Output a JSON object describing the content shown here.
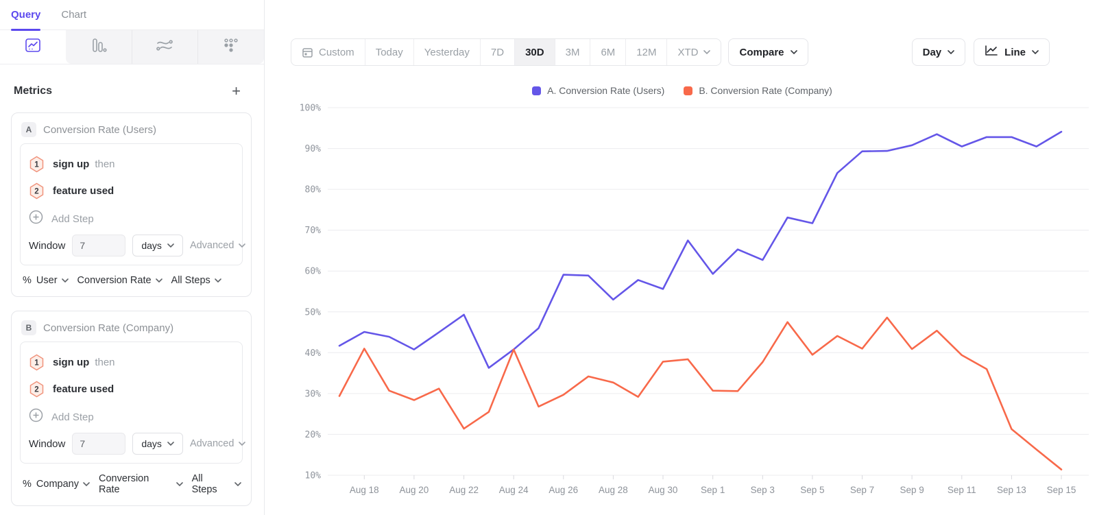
{
  "sidebar": {
    "tabs": [
      {
        "label": "Query",
        "active": true
      },
      {
        "label": "Chart",
        "active": false
      }
    ],
    "chart_type_icons": [
      {
        "name": "line-chart-icon",
        "active": true
      },
      {
        "name": "bar-chart-icon",
        "active": false
      },
      {
        "name": "flow-chart-icon",
        "active": false
      },
      {
        "name": "dots-grid-icon",
        "active": false
      }
    ],
    "metrics": {
      "title": "Metrics",
      "add_label": "+"
    },
    "metric_cards": [
      {
        "badge": "A",
        "title": "Conversion Rate (Users)",
        "steps": [
          {
            "num": "1",
            "event": "sign up",
            "suffix": "then"
          },
          {
            "num": "2",
            "event": "feature used",
            "suffix": ""
          }
        ],
        "add_step_label": "Add Step",
        "window": {
          "label": "Window",
          "value": "7",
          "unit": "days",
          "advanced_label": "Advanced"
        },
        "measure": {
          "prefix": "%",
          "entity": "User",
          "metric": "Conversion Rate",
          "steps": "All Steps"
        }
      },
      {
        "badge": "B",
        "title": "Conversion Rate (Company)",
        "steps": [
          {
            "num": "1",
            "event": "sign up",
            "suffix": "then"
          },
          {
            "num": "2",
            "event": "feature used",
            "suffix": ""
          }
        ],
        "add_step_label": "Add Step",
        "window": {
          "label": "Window",
          "value": "7",
          "unit": "days",
          "advanced_label": "Advanced"
        },
        "measure": {
          "prefix": "%",
          "entity": "Company",
          "metric": "Conversion Rate",
          "steps": "All Steps"
        }
      }
    ]
  },
  "toolbar": {
    "date_ranges": [
      {
        "label": "Custom",
        "icon": "calendar-icon"
      },
      {
        "label": "Today"
      },
      {
        "label": "Yesterday"
      },
      {
        "label": "7D"
      },
      {
        "label": "30D"
      },
      {
        "label": "3M"
      },
      {
        "label": "6M"
      },
      {
        "label": "12M"
      },
      {
        "label": "XTD",
        "dropdown": true
      }
    ],
    "active_range": "30D",
    "compare_label": "Compare",
    "granularity_label": "Day",
    "chart_style_label": "Line"
  },
  "chart_data": {
    "type": "line",
    "unit": "%",
    "ylim": [
      10,
      100
    ],
    "y_ticks": [
      100,
      90,
      80,
      70,
      60,
      50,
      40,
      30,
      20,
      10
    ],
    "grid": "horizontal",
    "legend_position": "top-center",
    "x_label_every": 2,
    "x_label_start": 1,
    "x": [
      "Aug 17",
      "Aug 18",
      "Aug 19",
      "Aug 20",
      "Aug 21",
      "Aug 22",
      "Aug 23",
      "Aug 24",
      "Aug 25",
      "Aug 26",
      "Aug 27",
      "Aug 28",
      "Aug 29",
      "Aug 30",
      "Aug 31",
      "Sep 1",
      "Sep 2",
      "Sep 3",
      "Sep 4",
      "Sep 5",
      "Sep 6",
      "Sep 7",
      "Sep 8",
      "Sep 9",
      "Sep 10",
      "Sep 11",
      "Sep 12",
      "Sep 13",
      "Sep 14",
      "Sep 15"
    ],
    "series": [
      {
        "key": "A",
        "name": "A. Conversion Rate (Users)",
        "color": "#6456E8",
        "values": [
          41.7,
          45.1,
          43.9,
          40.8,
          45.0,
          49.3,
          36.3,
          40.8,
          46.0,
          59.1,
          58.9,
          53.0,
          57.8,
          55.6,
          67.5,
          59.3,
          65.3,
          62.7,
          73.1,
          71.7,
          84.0,
          89.3,
          89.4,
          90.8,
          93.5,
          90.5,
          92.8,
          92.8,
          90.5,
          94.1
        ]
      },
      {
        "key": "B",
        "name": "B. Conversion Rate (Company)",
        "color": "#F8694A",
        "values": [
          29.4,
          41.0,
          30.7,
          28.4,
          31.2,
          21.4,
          25.5,
          40.8,
          26.8,
          29.7,
          34.2,
          32.7,
          29.2,
          37.8,
          38.4,
          30.7,
          30.6,
          37.7,
          47.5,
          39.5,
          44.1,
          41.0,
          48.6,
          40.9,
          45.4,
          39.4,
          36.0,
          21.3,
          16.3,
          11.4
        ]
      }
    ]
  }
}
